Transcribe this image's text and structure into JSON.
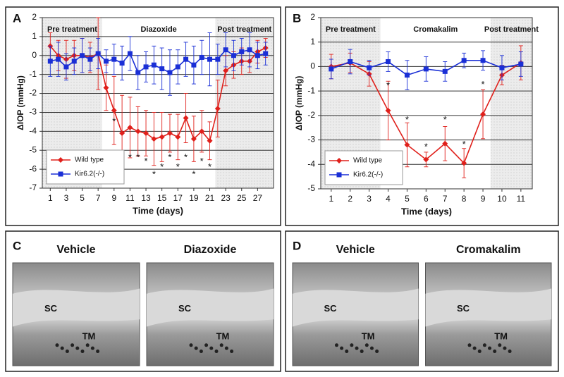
{
  "chart_data": [
    {
      "type": "line",
      "panel_label": "A",
      "xlabel": "Time (days)",
      "ylabel": "ΔIOP (mmHg)",
      "x": [
        1,
        2,
        3,
        4,
        5,
        6,
        7,
        8,
        9,
        10,
        11,
        12,
        13,
        14,
        15,
        16,
        17,
        18,
        19,
        20,
        21,
        22,
        23,
        24,
        25,
        26,
        27,
        28
      ],
      "xlim": [
        0,
        29
      ],
      "xticks": [
        1,
        3,
        5,
        7,
        9,
        11,
        13,
        15,
        17,
        19,
        21,
        23,
        25,
        27
      ],
      "ylim": [
        -7,
        2
      ],
      "yticks": [
        -7,
        -6,
        -5,
        -4,
        -3,
        -2,
        -1,
        0,
        1,
        2
      ],
      "grid": true,
      "legend": "lower left",
      "phases": [
        {
          "label": "Pre treatment",
          "range": [
            0,
            7.5
          ],
          "shaded": true
        },
        {
          "label": "Diazoxide",
          "range": [
            7.5,
            21.7
          ],
          "shaded": false
        },
        {
          "label": "Post treatment",
          "range": [
            21.7,
            29
          ],
          "shaded": true
        }
      ],
      "series": [
        {
          "name": "Wild type",
          "color": "#e0201b",
          "marker": "diamond",
          "values": [
            0.5,
            0,
            -0.2,
            0,
            0,
            -0.1,
            0.1,
            -1.7,
            -2.9,
            -4.1,
            -3.8,
            -4.0,
            -4.1,
            -4.4,
            -4.3,
            -4.1,
            -4.3,
            -3.3,
            -4.4,
            -4.0,
            -4.5,
            -2.8,
            -0.8,
            -0.5,
            -0.3,
            -0.3,
            0.2,
            0.4
          ],
          "errors": [
            0.7,
            0.8,
            1.0,
            0.8,
            0.9,
            0.8,
            1.9,
            1.2,
            1.8,
            2.0,
            1.6,
            1.3,
            1.2,
            1.4,
            1.3,
            1.0,
            1.2,
            1.3,
            1.2,
            1.1,
            1.0,
            1.5,
            0.8,
            0.7,
            0.7,
            0.6,
            0.6,
            0.5
          ]
        },
        {
          "name": "Kir6.2(-/-)",
          "color": "#1a2fd6",
          "marker": "square",
          "values": [
            -0.3,
            -0.2,
            -0.6,
            -0.3,
            0,
            -0.2,
            0.1,
            -0.3,
            -0.2,
            -0.4,
            0.1,
            -0.9,
            -0.6,
            -0.5,
            -0.7,
            -0.9,
            -0.6,
            -0.2,
            -0.5,
            -0.1,
            -0.2,
            -0.2,
            0.3,
            0.0,
            0.2,
            0.3,
            0.0,
            0.1
          ],
          "errors": [
            0.8,
            0.9,
            0.7,
            0.7,
            0.9,
            0.6,
            0.8,
            0.6,
            0.8,
            0.9,
            0.9,
            0.9,
            0.8,
            1.0,
            1.1,
            1.2,
            0.9,
            0.9,
            1.0,
            0.9,
            1.4,
            0.8,
            0.9,
            0.8,
            0.7,
            0.9,
            0.7,
            0.6
          ]
        }
      ],
      "annotations": [
        {
          "text": "*",
          "x": 9,
          "y": -3.5
        },
        {
          "text": "*",
          "x": 10,
          "y": -6.6
        },
        {
          "text": "*",
          "x": 11,
          "y": -5.4
        },
        {
          "text": "*",
          "x": 12,
          "y": -5.4
        },
        {
          "text": "*",
          "x": 13,
          "y": -5.6
        },
        {
          "text": "*",
          "x": 14,
          "y": -6.3
        },
        {
          "text": "*",
          "x": 15,
          "y": -5.9
        },
        {
          "text": "*",
          "x": 16,
          "y": -5.4
        },
        {
          "text": "*",
          "x": 17,
          "y": -5.9
        },
        {
          "text": "*",
          "x": 18,
          "y": -5.4
        },
        {
          "text": "*",
          "x": 19,
          "y": -6.3
        },
        {
          "text": "*",
          "x": 20,
          "y": -5.6
        },
        {
          "text": "*",
          "x": 21,
          "y": -5.9
        }
      ]
    },
    {
      "type": "line",
      "panel_label": "B",
      "xlabel": "Time (days)",
      "ylabel": "ΔIOP (mmHg)",
      "x": [
        1,
        2,
        3,
        4,
        5,
        6,
        7,
        8,
        9,
        10,
        11
      ],
      "xlim": [
        0.45,
        11.6
      ],
      "xticks": [
        1,
        2,
        3,
        4,
        5,
        6,
        7,
        8,
        9,
        10,
        11
      ],
      "ylim": [
        -5,
        2
      ],
      "yticks": [
        -5,
        -4,
        -3,
        -2,
        -1,
        0,
        1,
        2
      ],
      "grid": true,
      "legend": "lower left",
      "phases": [
        {
          "label": "Pre treatment",
          "range": [
            0.45,
            3.6
          ],
          "shaded": true
        },
        {
          "label": "Cromakalim",
          "range": [
            3.6,
            9.4
          ],
          "shaded": false
        },
        {
          "label": "Post treatment",
          "range": [
            9.4,
            11.6
          ],
          "shaded": true
        }
      ],
      "series": [
        {
          "name": "Wild type",
          "color": "#e0201b",
          "marker": "diamond",
          "values": [
            0,
            0.15,
            -0.3,
            -1.8,
            -3.2,
            -3.8,
            -3.15,
            -3.95,
            -1.95,
            -0.35,
            0.15
          ],
          "errors": [
            0.5,
            0.4,
            0.5,
            1.2,
            0.9,
            0.3,
            0.7,
            0.6,
            1.0,
            0.4,
            0.7
          ]
        },
        {
          "name": "Kir6.2(-/-)",
          "color": "#1a2fd6",
          "marker": "square",
          "values": [
            -0.1,
            0.2,
            -0.05,
            0.2,
            -0.35,
            -0.1,
            -0.2,
            0.25,
            0.25,
            -0.05,
            0.1
          ],
          "errors": [
            0.4,
            0.5,
            0.3,
            0.4,
            0.6,
            0.5,
            0.4,
            0.3,
            0.4,
            0.5,
            0.5
          ]
        }
      ],
      "annotations": [
        {
          "text": "*",
          "x": 4,
          "y": -0.8
        },
        {
          "text": "*",
          "x": 5,
          "y": -2.2
        },
        {
          "text": "*",
          "x": 6,
          "y": -3.3
        },
        {
          "text": "*",
          "x": 7,
          "y": -2.2
        },
        {
          "text": "*",
          "x": 8,
          "y": -3.2
        },
        {
          "text": "*",
          "x": 9,
          "y": -0.75
        }
      ]
    }
  ],
  "micrographs": [
    {
      "panel_label": "C",
      "images": [
        {
          "title": "Vehicle",
          "labels": [
            "SC",
            "TM"
          ]
        },
        {
          "title": "Diazoxide",
          "labels": [
            "SC",
            "TM"
          ]
        }
      ]
    },
    {
      "panel_label": "D",
      "images": [
        {
          "title": "Vehicle",
          "labels": [
            "SC",
            "TM"
          ]
        },
        {
          "title": "Cromakalim",
          "labels": [
            "SC",
            "TM"
          ]
        }
      ]
    }
  ]
}
